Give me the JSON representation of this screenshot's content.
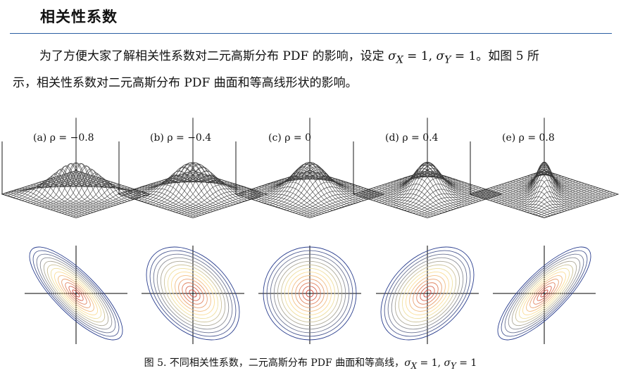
{
  "section": {
    "title": "相关性系数"
  },
  "paragraph": {
    "prefix": "为了方便大家了解相关性系数对二元高斯分布 PDF 的影响，设定 ",
    "sigma_x": "σ",
    "sub_x": "X",
    "mid": " = 1, ",
    "sigma_y": "σ",
    "sub_y": "Y",
    "suffix": " = 1。如图 5 所",
    "line2": "示，相关性系数对二元高斯分布 PDF 曲面和等高线形状的影响。"
  },
  "figure": {
    "panels": [
      {
        "label": "(a) ρ = −0.8",
        "rho": -0.8
      },
      {
        "label": "(b) ρ = −0.4",
        "rho": -0.4
      },
      {
        "label": "(c) ρ = 0",
        "rho": 0
      },
      {
        "label": "(d) ρ = 0.4",
        "rho": 0.4
      },
      {
        "label": "(e) ρ = 0.8",
        "rho": 0.8
      }
    ],
    "caption_prefix": "图 5. 不同相关性系数，二元高斯分布 PDF 曲面和等高线，",
    "caption_sigma": "σ",
    "caption_sub_x": "X",
    "caption_mid": " = 1, ",
    "caption_sub_y": "Y",
    "caption_suffix": " = 1",
    "colors": {
      "surface_mesh": "#3a3a3a",
      "peak": "#c0392b",
      "axis": "#000000",
      "contour_low": "#2b3f8f",
      "contour_high": "#c62828"
    }
  }
}
